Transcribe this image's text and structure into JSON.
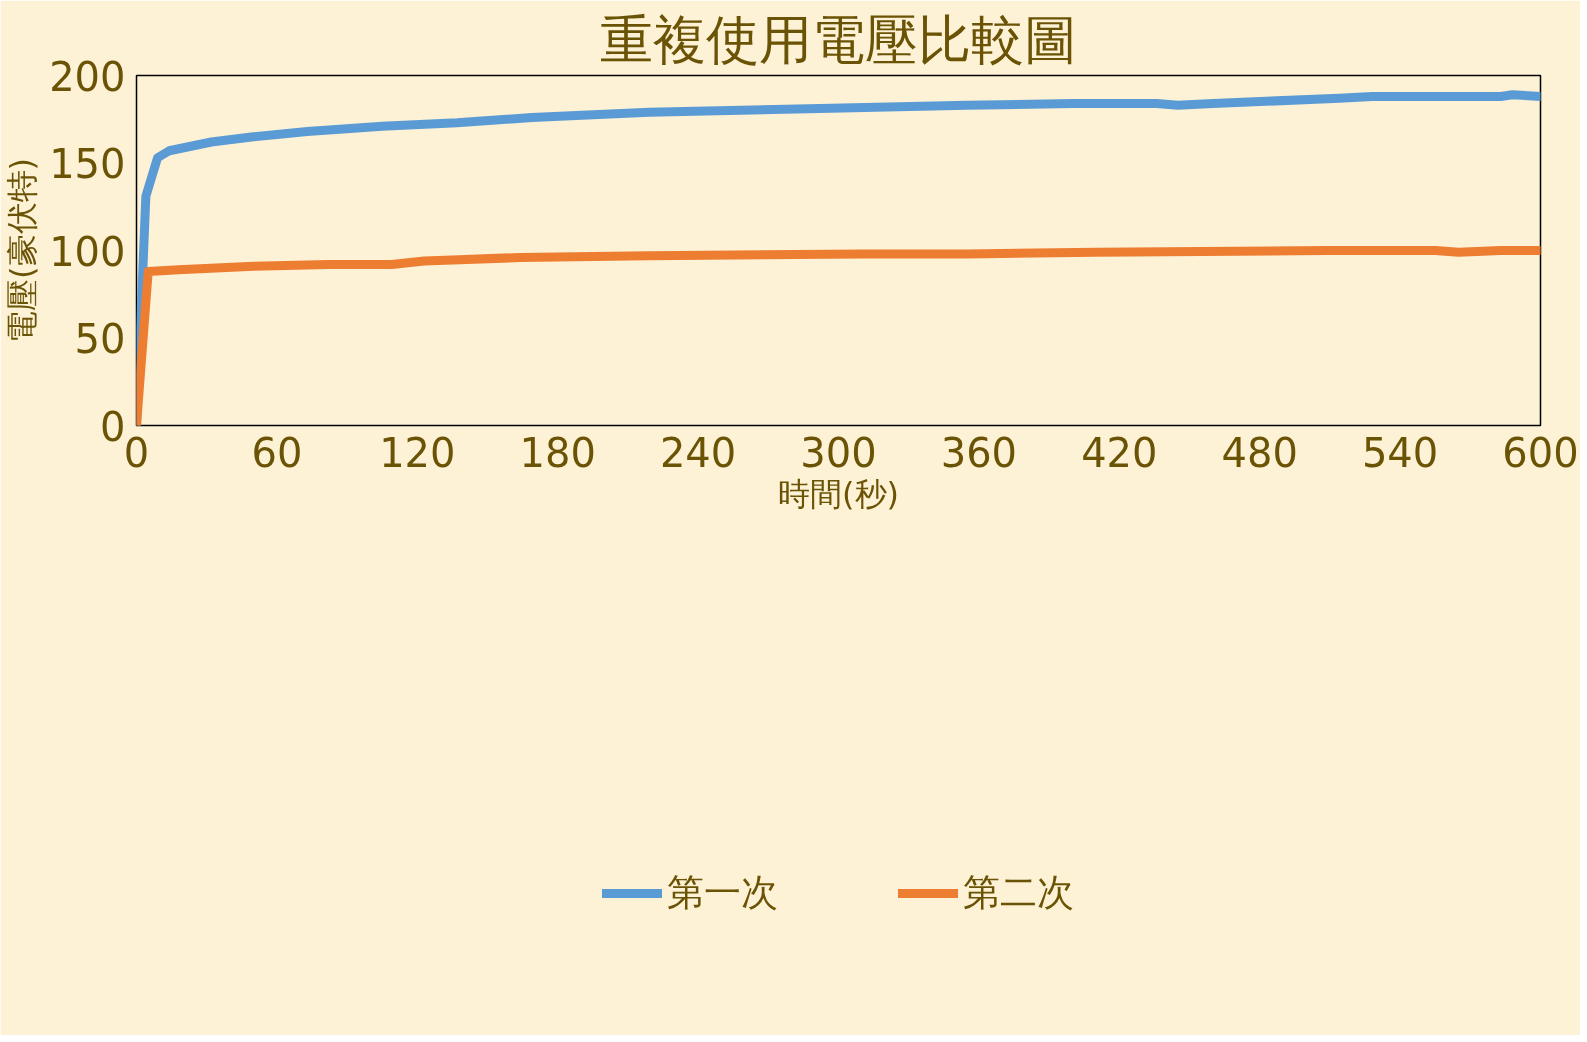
{
  "chart_data": {
    "type": "line",
    "title": "重複使用電壓比較圖",
    "xlabel": "時間(秒)",
    "ylabel": "電壓(豪伏特)",
    "xlim": [
      0,
      600
    ],
    "xticks": [
      0,
      60,
      120,
      180,
      240,
      300,
      360,
      420,
      480,
      540,
      600
    ],
    "ylim": [
      0,
      200
    ],
    "yticks": [
      0,
      50,
      100,
      150,
      200
    ],
    "grid": false,
    "legend": "bottom",
    "series": [
      {
        "name": "第一次",
        "color": "#5b9bd5",
        "x": [
          0,
          4,
          9,
          14,
          32,
          50,
          73,
          105,
          137,
          169,
          219,
          287,
          355,
          400,
          436,
          445,
          460,
          514,
          528,
          583,
          588,
          600
        ],
        "values": [
          0,
          131,
          153,
          157,
          162,
          165,
          168,
          171,
          173,
          176,
          179,
          181,
          183,
          184,
          184,
          183,
          184,
          187,
          188,
          188,
          189,
          188
        ]
      },
      {
        "name": "第二次",
        "color": "#ed7d31",
        "x": [
          0,
          5,
          18,
          50,
          82,
          109,
          123,
          164,
          219,
          310,
          355,
          410,
          509,
          555,
          565,
          583,
          600
        ],
        "values": [
          0,
          88,
          89,
          91,
          92,
          92,
          94,
          96,
          97,
          98,
          98,
          99,
          100,
          100,
          99,
          100,
          100
        ]
      }
    ]
  }
}
